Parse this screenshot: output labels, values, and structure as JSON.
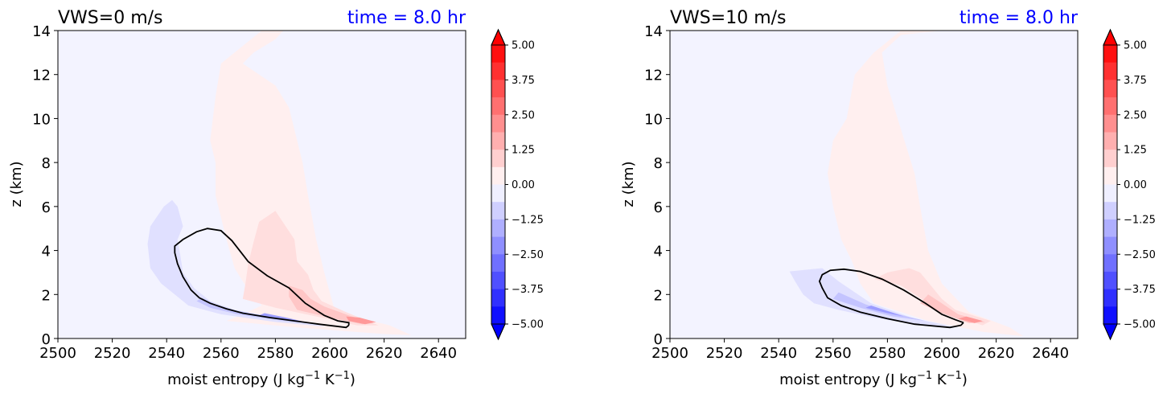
{
  "chart_data": [
    {
      "type": "contour",
      "title_left": "VWS=0 m/s",
      "title_right": "time = 8.0 hr",
      "title_right_color": "#0000ff",
      "xlabel": "moist entropy (J kg",
      "xlabel_sup1": "−1",
      "xlabel_mid": " K",
      "xlabel_sup2": "−1",
      "xlabel_end": ")",
      "ylabel": "z (km)",
      "xlim": [
        2500,
        2650
      ],
      "ylim": [
        0,
        14
      ],
      "xticks": [
        "2500",
        "2520",
        "2540",
        "2560",
        "2580",
        "2600",
        "2620",
        "2640"
      ],
      "yticks": [
        "0",
        "2",
        "4",
        "6",
        "8",
        "10",
        "12",
        "14"
      ],
      "colorbar": {
        "range": [
          -5.0,
          5.0
        ],
        "ticks": [
          "5.00",
          "3.75",
          "2.50",
          "1.25",
          "0.00",
          "−1.25",
          "−2.50",
          "−3.75",
          "−5.00"
        ],
        "cmap": "bwr",
        "extend": "both"
      },
      "background_color": "#f3f3ff",
      "contour_line": [
        [
          2607,
          0.6
        ],
        [
          2606,
          0.5
        ],
        [
          2596,
          0.65
        ],
        [
          2587,
          0.8
        ],
        [
          2578,
          0.95
        ],
        [
          2568,
          1.15
        ],
        [
          2562,
          1.35
        ],
        [
          2556,
          1.6
        ],
        [
          2552,
          1.85
        ],
        [
          2549,
          2.2
        ],
        [
          2546,
          2.8
        ],
        [
          2544,
          3.4
        ],
        [
          2543,
          3.9
        ],
        [
          2543,
          4.2
        ],
        [
          2546,
          4.5
        ],
        [
          2551,
          4.85
        ],
        [
          2555,
          5.0
        ],
        [
          2560,
          4.9
        ],
        [
          2564,
          4.45
        ],
        [
          2570,
          3.5
        ],
        [
          2577,
          2.85
        ],
        [
          2585,
          2.3
        ],
        [
          2591,
          1.6
        ],
        [
          2598,
          1.05
        ],
        [
          2603,
          0.8
        ],
        [
          2607,
          0.72
        ],
        [
          2607,
          0.6
        ]
      ],
      "pos_regions": [
        {
          "level": 0.5,
          "color": "#ffefef",
          "points": [
            [
              2562,
              0.8
            ],
            [
              2588,
              0.5
            ],
            [
              2620,
              0.2
            ],
            [
              2630,
              0.15
            ],
            [
              2622,
              0.6
            ],
            [
              2602,
              1.2
            ],
            [
              2598,
              3
            ],
            [
              2595,
              4.5
            ],
            [
              2592,
              6.5
            ],
            [
              2590,
              8
            ],
            [
              2585,
              10.5
            ],
            [
              2580,
              11.5
            ],
            [
              2568,
              12.5
            ],
            [
              2572,
              13
            ],
            [
              2580,
              13.6
            ],
            [
              2583,
              14
            ],
            [
              2575,
              14
            ],
            [
              2568,
              13.3
            ],
            [
              2560,
              12.5
            ],
            [
              2558,
              11
            ],
            [
              2556,
              9
            ],
            [
              2558,
              8
            ],
            [
              2558,
              6.5
            ],
            [
              2562,
              4.5
            ],
            [
              2565,
              3.2
            ],
            [
              2570,
              2.2
            ],
            [
              2575,
              1.5
            ],
            [
              2568,
              1.1
            ]
          ]
        },
        {
          "level": 1.5,
          "color": "#ffdede",
          "points": [
            [
              2568,
              1.8
            ],
            [
              2580,
              1.4
            ],
            [
              2595,
              1.0
            ],
            [
              2610,
              0.6
            ],
            [
              2618,
              0.6
            ],
            [
              2606,
              1.2
            ],
            [
              2597,
              1.7
            ],
            [
              2594,
              2.2
            ],
            [
              2592,
              2.9
            ],
            [
              2588,
              3.5
            ],
            [
              2587,
              4.5
            ],
            [
              2580,
              5.8
            ],
            [
              2574,
              5.3
            ],
            [
              2572,
              4.4
            ],
            [
              2570,
              3.4
            ],
            [
              2569,
              2.5
            ]
          ]
        },
        {
          "level": 2.5,
          "color": "#ffc6c6",
          "points": [
            [
              2588,
              1.3
            ],
            [
              2600,
              0.95
            ],
            [
              2612,
              0.65
            ],
            [
              2616,
              0.7
            ],
            [
              2607,
              1.05
            ],
            [
              2598,
              1.45
            ],
            [
              2593,
              1.8
            ],
            [
              2590,
              2.2
            ],
            [
              2585,
              2.4
            ],
            [
              2585,
              1.9
            ]
          ]
        },
        {
          "level": 3.5,
          "color": "#ff9999",
          "points": [
            [
              2607,
              0.8
            ],
            [
              2613,
              0.65
            ],
            [
              2617,
              0.75
            ],
            [
              2611,
              0.95
            ],
            [
              2606,
              1.0
            ]
          ]
        }
      ],
      "neg_regions": [
        {
          "level": -0.5,
          "color": "#e0e0ff",
          "points": [
            [
              2548,
              1.5
            ],
            [
              2560,
              1.1
            ],
            [
              2580,
              0.75
            ],
            [
              2598,
              0.55
            ],
            [
              2592,
              0.75
            ],
            [
              2578,
              1.0
            ],
            [
              2565,
              1.3
            ],
            [
              2556,
              1.7
            ],
            [
              2550,
              2.3
            ],
            [
              2546,
              3.0
            ],
            [
              2545,
              3.8
            ],
            [
              2544,
              4.5
            ],
            [
              2546,
              5.1
            ],
            [
              2544,
              6.0
            ],
            [
              2542,
              6.3
            ],
            [
              2539,
              6.0
            ],
            [
              2534,
              5.1
            ],
            [
              2533,
              4.3
            ],
            [
              2534,
              3.2
            ],
            [
              2538,
              2.5
            ],
            [
              2543,
              2.0
            ]
          ]
        },
        {
          "level": -1.5,
          "color": "#c4c4ff",
          "points": [
            [
              2556,
              1.4
            ],
            [
              2566,
              1.1
            ],
            [
              2580,
              0.85
            ],
            [
              2590,
              0.7
            ],
            [
              2580,
              0.95
            ],
            [
              2566,
              1.25
            ],
            [
              2558,
              1.55
            ],
            [
              2553,
              1.85
            ],
            [
              2551,
              1.7
            ]
          ]
        },
        {
          "level": -2.5,
          "color": "#9c9cff",
          "points": [
            [
              2574,
              1.05
            ],
            [
              2584,
              0.85
            ],
            [
              2591,
              0.75
            ],
            [
              2584,
              0.95
            ],
            [
              2576,
              1.15
            ]
          ]
        }
      ]
    },
    {
      "type": "contour",
      "title_left": "VWS=10 m/s",
      "title_right": "time = 8.0 hr",
      "title_right_color": "#0000ff",
      "xlabel": "moist entropy (J kg",
      "xlabel_sup1": "−1",
      "xlabel_mid": " K",
      "xlabel_sup2": "−1",
      "xlabel_end": ")",
      "ylabel": "z (km)",
      "xlim": [
        2500,
        2650
      ],
      "ylim": [
        0,
        14
      ],
      "xticks": [
        "2500",
        "2520",
        "2540",
        "2560",
        "2580",
        "2600",
        "2620",
        "2640"
      ],
      "yticks": [
        "0",
        "2",
        "4",
        "6",
        "8",
        "10",
        "12",
        "14"
      ],
      "colorbar": {
        "range": [
          -5.0,
          5.0
        ],
        "ticks": [
          "5.00",
          "3.75",
          "2.50",
          "1.25",
          "0.00",
          "−1.25",
          "−2.50",
          "−3.75",
          "−5.00"
        ],
        "cmap": "bwr",
        "extend": "both"
      },
      "background_color": "#f3f3ff",
      "contour_line": [
        [
          2608,
          0.72
        ],
        [
          2607,
          0.6
        ],
        [
          2603,
          0.5
        ],
        [
          2590,
          0.65
        ],
        [
          2580,
          0.9
        ],
        [
          2570,
          1.2
        ],
        [
          2563,
          1.5
        ],
        [
          2558,
          1.85
        ],
        [
          2556,
          2.3
        ],
        [
          2555,
          2.6
        ],
        [
          2556,
          2.9
        ],
        [
          2559,
          3.1
        ],
        [
          2564,
          3.15
        ],
        [
          2570,
          3.05
        ],
        [
          2578,
          2.7
        ],
        [
          2586,
          2.2
        ],
        [
          2594,
          1.6
        ],
        [
          2600,
          1.1
        ],
        [
          2605,
          0.85
        ],
        [
          2608,
          0.72
        ]
      ],
      "pos_regions": [
        {
          "level": 0.5,
          "color": "#ffefef",
          "points": [
            [
              2575,
              1.6
            ],
            [
              2595,
              0.8
            ],
            [
              2615,
              0.3
            ],
            [
              2630,
              0.1
            ],
            [
              2625,
              0.5
            ],
            [
              2610,
              1.2
            ],
            [
              2600,
              2.5
            ],
            [
              2595,
              4.0
            ],
            [
              2592,
              6.0
            ],
            [
              2590,
              7.5
            ],
            [
              2585,
              9.5
            ],
            [
              2580,
              11.5
            ],
            [
              2578,
              13.0
            ],
            [
              2585,
              13.8
            ],
            [
              2600,
              14
            ],
            [
              2592,
              14
            ],
            [
              2585,
              14
            ],
            [
              2575,
              13
            ],
            [
              2568,
              12
            ],
            [
              2565,
              10
            ],
            [
              2560,
              9
            ],
            [
              2558,
              7.5
            ],
            [
              2560,
              6.0
            ],
            [
              2563,
              4.5
            ],
            [
              2567,
              3.5
            ],
            [
              2570,
              2.5
            ]
          ]
        },
        {
          "level": 1.5,
          "color": "#ffdede",
          "points": [
            [
              2575,
              2.7
            ],
            [
              2585,
              2.4
            ],
            [
              2595,
              1.6
            ],
            [
              2605,
              1.0
            ],
            [
              2615,
              0.6
            ],
            [
              2618,
              0.8
            ],
            [
              2605,
              1.3
            ],
            [
              2600,
              1.8
            ],
            [
              2596,
              2.4
            ],
            [
              2592,
              3.0
            ],
            [
              2588,
              3.2
            ],
            [
              2580,
              3.0
            ]
          ]
        },
        {
          "level": 2.5,
          "color": "#ffc6c6",
          "points": [
            [
              2592,
              1.6
            ],
            [
              2600,
              1.15
            ],
            [
              2610,
              0.7
            ],
            [
              2616,
              0.75
            ],
            [
              2606,
              1.1
            ],
            [
              2600,
              1.6
            ],
            [
              2595,
              2.0
            ]
          ]
        },
        {
          "level": 3.5,
          "color": "#ff9999",
          "points": [
            [
              2606,
              0.9
            ],
            [
              2612,
              0.7
            ],
            [
              2615,
              0.8
            ],
            [
              2609,
              1.0
            ]
          ]
        }
      ],
      "neg_regions": [
        {
          "level": -0.5,
          "color": "#e0e0ff",
          "points": [
            [
              2544,
              3.05
            ],
            [
              2556,
              3.2
            ],
            [
              2562,
              2.6
            ],
            [
              2574,
              1.6
            ],
            [
              2590,
              0.9
            ],
            [
              2604,
              0.55
            ],
            [
              2590,
              0.65
            ],
            [
              2575,
              0.95
            ],
            [
              2562,
              1.3
            ],
            [
              2553,
              1.6
            ],
            [
              2549,
              2.0
            ],
            [
              2546,
              2.6
            ]
          ]
        },
        {
          "level": -1.5,
          "color": "#c4c4ff",
          "points": [
            [
              2560,
              1.8
            ],
            [
              2570,
              1.4
            ],
            [
              2582,
              1.0
            ],
            [
              2594,
              0.8
            ],
            [
              2584,
              1.1
            ],
            [
              2572,
              1.55
            ],
            [
              2562,
              2.1
            ]
          ]
        },
        {
          "level": -2.5,
          "color": "#9c9cff",
          "points": [
            [
              2572,
              1.4
            ],
            [
              2580,
              1.15
            ],
            [
              2586,
              1.0
            ],
            [
              2580,
              1.25
            ],
            [
              2574,
              1.5
            ]
          ]
        }
      ]
    }
  ]
}
